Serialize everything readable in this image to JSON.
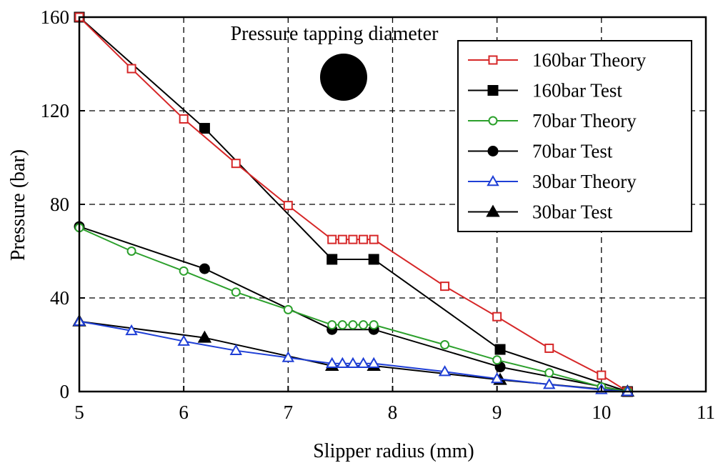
{
  "chart_data": {
    "type": "line",
    "title": "",
    "xlabel": "Slipper radius (mm)",
    "ylabel": "Pressure (bar)",
    "xlim": [
      5,
      11
    ],
    "ylim": [
      0,
      160
    ],
    "xticks": [
      "5",
      "6",
      "7",
      "8",
      "9",
      "10",
      "11"
    ],
    "yticks": [
      "0",
      "40",
      "80",
      "120",
      "160"
    ],
    "grid": true,
    "legend_position": "top-right",
    "annotation": "Pressure tapping diameter",
    "series": [
      {
        "name": "160bar Theory",
        "color": "#d62728",
        "marker": "square-open",
        "x": [
          5,
          5.5,
          6,
          6.5,
          7,
          7.42,
          7.52,
          7.62,
          7.72,
          7.82,
          8.5,
          9,
          9.5,
          10,
          10.25
        ],
        "y": [
          160,
          138,
          116.5,
          97.5,
          79.5,
          65,
          65,
          65,
          65,
          65,
          45,
          32,
          18.5,
          7,
          0
        ]
      },
      {
        "name": "160bar Test",
        "color": "#000000",
        "marker": "square",
        "x": [
          5,
          6.2,
          7.42,
          7.82,
          9.03,
          10.25
        ],
        "y": [
          160,
          112.5,
          56.5,
          56.5,
          18,
          0
        ]
      },
      {
        "name": "70bar  Theory",
        "color": "#2ca02c",
        "marker": "circle-open",
        "x": [
          5,
          5.5,
          6,
          6.5,
          7,
          7.42,
          7.52,
          7.62,
          7.72,
          7.82,
          8.5,
          9,
          9.5,
          10,
          10.25
        ],
        "y": [
          70,
          60,
          51.5,
          42.5,
          35,
          28.5,
          28.5,
          28.5,
          28.5,
          28.5,
          20,
          13.5,
          8,
          2,
          0
        ]
      },
      {
        "name": "70bar  Test",
        "color": "#000000",
        "marker": "circle",
        "x": [
          5,
          6.2,
          7.42,
          7.82,
          9.03,
          10.25
        ],
        "y": [
          70.5,
          52.5,
          26.5,
          26.5,
          10.5,
          0
        ]
      },
      {
        "name": "30bar  Theory",
        "color": "#1f3fd6",
        "marker": "triangle-open",
        "x": [
          5,
          5.5,
          6,
          6.5,
          7,
          7.42,
          7.52,
          7.62,
          7.72,
          7.82,
          8.5,
          9,
          9.5,
          10,
          10.25
        ],
        "y": [
          30,
          26,
          21.5,
          17.5,
          14.5,
          12,
          12,
          12,
          12,
          12,
          8.5,
          5.5,
          3,
          0.8,
          0
        ]
      },
      {
        "name": "30bar  Test",
        "color": "#000000",
        "marker": "triangle",
        "x": [
          5,
          6.2,
          7.42,
          7.82,
          9.03,
          10.25
        ],
        "y": [
          30,
          23,
          11,
          11,
          5,
          0
        ]
      }
    ]
  }
}
